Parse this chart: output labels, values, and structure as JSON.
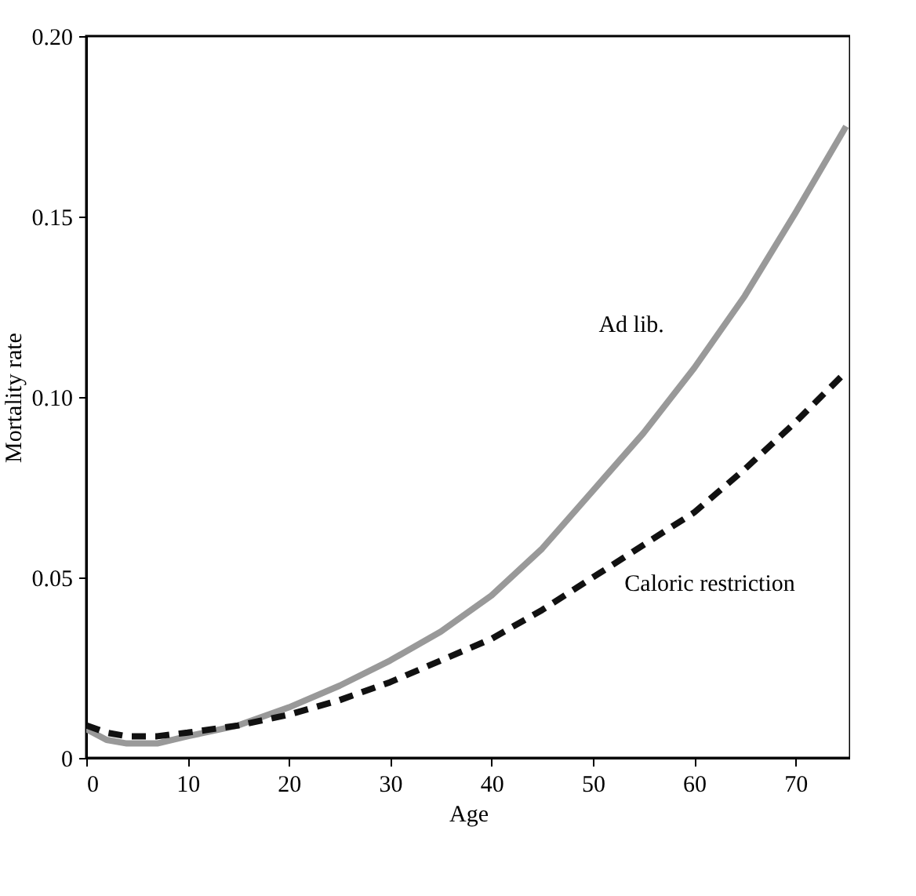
{
  "chart_data": {
    "type": "line",
    "xlabel": "Age",
    "ylabel": "Mortality rate",
    "x": [
      0,
      2,
      4,
      7,
      10,
      15,
      20,
      25,
      30,
      35,
      40,
      45,
      50,
      55,
      60,
      65,
      70,
      75
    ],
    "series": [
      {
        "name": "Ad lib.",
        "color": "#999999",
        "line_style": "solid",
        "values": [
          0.008,
          0.005,
          0.004,
          0.004,
          0.006,
          0.009,
          0.014,
          0.02,
          0.027,
          0.035,
          0.045,
          0.058,
          0.074,
          0.09,
          0.108,
          0.128,
          0.151,
          0.175
        ]
      },
      {
        "name": "Caloric restriction",
        "color": "#111111",
        "line_style": "dashed",
        "values": [
          0.009,
          0.007,
          0.006,
          0.006,
          0.007,
          0.009,
          0.012,
          0.016,
          0.021,
          0.027,
          0.033,
          0.041,
          0.05,
          0.059,
          0.068,
          0.08,
          0.093,
          0.107
        ]
      }
    ],
    "xlim": [
      0,
      75.4
    ],
    "xticks": [
      0,
      10,
      20,
      30,
      40,
      50,
      60,
      70
    ],
    "ylim": [
      0,
      0.2
    ],
    "yticks": [
      0,
      {
        "value": 0.05,
        "label": "0.05"
      },
      {
        "value": 0.1,
        "label": "0.10"
      },
      {
        "value": 0.15,
        "label": "0.15"
      },
      {
        "value": 0.2,
        "label": "0.20"
      }
    ],
    "grid": false
  }
}
